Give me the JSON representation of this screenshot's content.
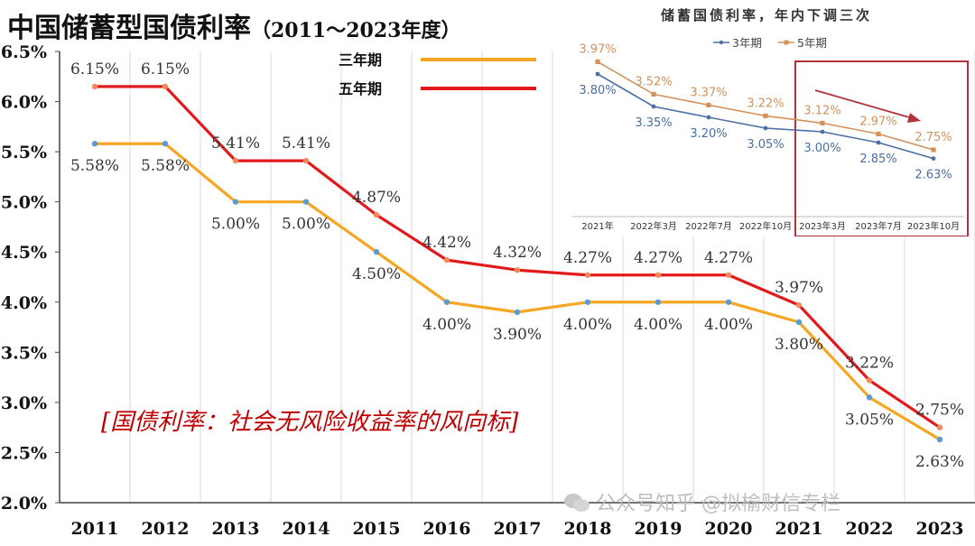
{
  "header": {
    "title": "中国储蓄型国债利率",
    "subtitle": "（2011～2023年度）"
  },
  "annotation": "[国债利率：社会无风险收益率的风向标]",
  "watermark": "公众号知乎 @拟榆财信专栏",
  "colors": {
    "three_year": "#f5a623",
    "five_year": "#e31a1c",
    "point": "#5b9bd5",
    "grid": "#d9d9d9",
    "annotation": "#c00000",
    "inset_3y": "#4a6fa5",
    "inset_5y": "#d4915a",
    "inset_box": "#b0323c"
  },
  "chart_data": [
    {
      "type": "line",
      "categories": [
        "2011",
        "2012",
        "2013",
        "2014",
        "2015",
        "2016",
        "2017",
        "2018",
        "2019",
        "2020",
        "2021",
        "2022",
        "2023"
      ],
      "series": [
        {
          "name": "三年期",
          "values": [
            5.58,
            5.58,
            5.0,
            5.0,
            4.5,
            4.0,
            3.9,
            4.0,
            4.0,
            4.0,
            3.8,
            3.05,
            2.63
          ],
          "labels": [
            "5.58%",
            "5.58%",
            "5.00%",
            "5.00%",
            "4.50%",
            "4.00%",
            "3.90%",
            "4.00%",
            "4.00%",
            "4.00%",
            "3.80%",
            "3.05%",
            "2.63%"
          ]
        },
        {
          "name": "五年期",
          "values": [
            6.15,
            6.15,
            5.41,
            5.41,
            4.87,
            4.42,
            4.32,
            4.27,
            4.27,
            4.27,
            3.97,
            3.22,
            2.75
          ],
          "labels": [
            "6.15%",
            "6.15%",
            "5.41%",
            "5.41%",
            "4.87%",
            "4.42%",
            "4.32%",
            "4.27%",
            "4.27%",
            "4.27%",
            "3.97%",
            "3.22%",
            "2.75%"
          ]
        }
      ],
      "ylim": [
        2.0,
        6.5
      ],
      "yticks": [
        "2.0%",
        "2.5%",
        "3.0%",
        "3.5%",
        "4.0%",
        "4.5%",
        "5.0%",
        "5.5%",
        "6.0%",
        "6.5%"
      ],
      "grid": true,
      "legend_position": "top-center"
    },
    {
      "type": "line",
      "title": "储蓄国债利率，年内下调三次",
      "categories": [
        "2021年",
        "2022年3月",
        "2022年7月",
        "2022年10月",
        "2023年3月",
        "2023年7月",
        "2023年10月"
      ],
      "series": [
        {
          "name": "3年期",
          "values": [
            3.8,
            3.35,
            3.2,
            3.05,
            3.0,
            2.85,
            2.63
          ],
          "labels": [
            "3.80%",
            "3.35%",
            "3.20%",
            "3.05%",
            "3.00%",
            "2.85%",
            "2.63%"
          ]
        },
        {
          "name": "5年期",
          "values": [
            3.97,
            3.52,
            3.37,
            3.22,
            3.12,
            2.97,
            2.75
          ],
          "labels": [
            "3.97%",
            "3.52%",
            "3.37%",
            "3.22%",
            "3.12%",
            "2.97%",
            "2.75%"
          ]
        }
      ],
      "legend_position": "top-center",
      "highlight": [
        "2023年3月",
        "2023年7月",
        "2023年10月"
      ]
    }
  ]
}
